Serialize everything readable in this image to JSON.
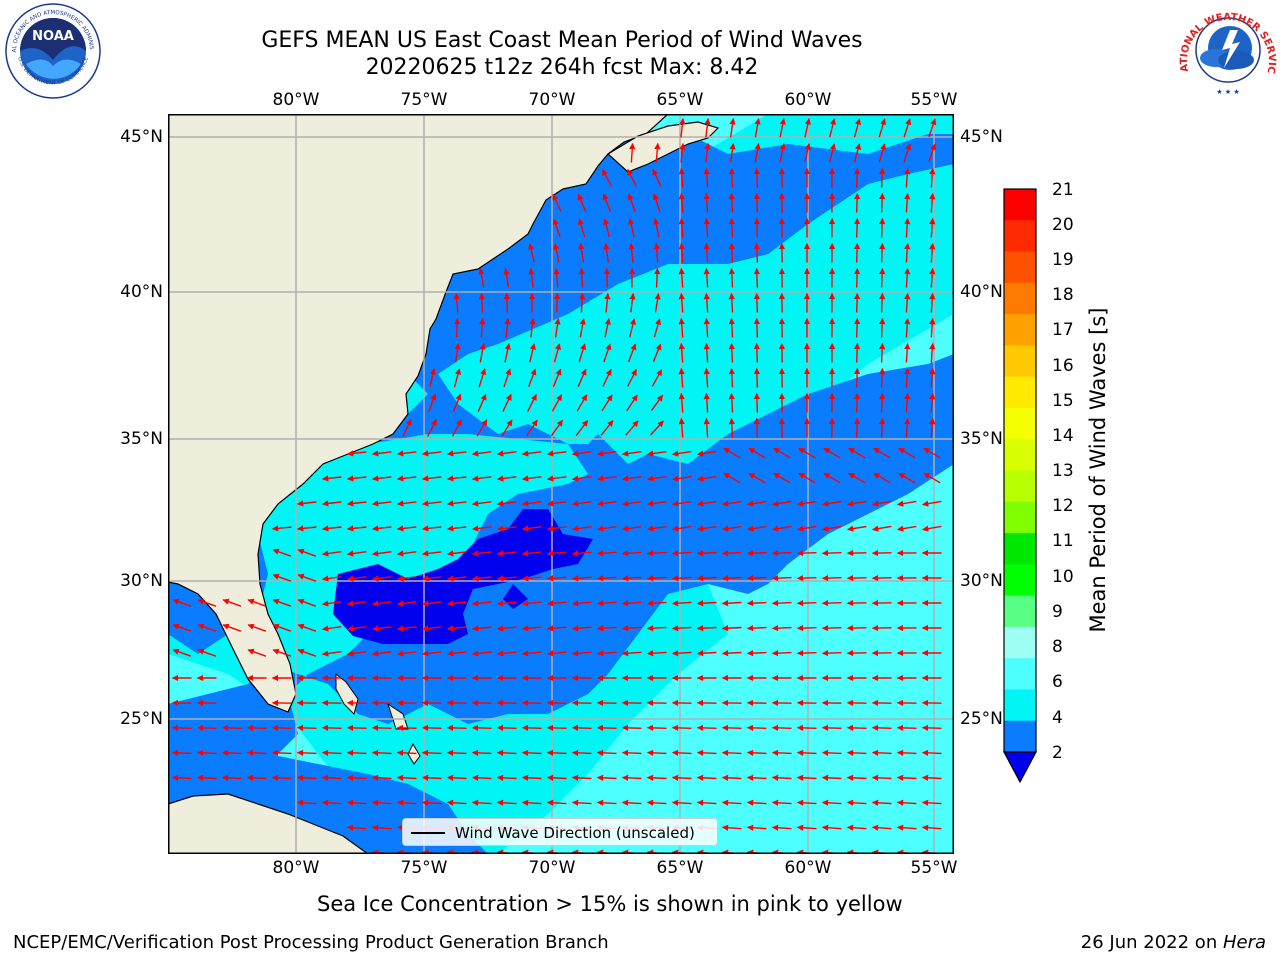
{
  "title": {
    "line1": "GEFS MEAN US East Coast Mean Period of Wind Waves",
    "line2": "20220625 t12z 264h fcst   Max: 8.42"
  },
  "logos": {
    "left": "NOAA",
    "left_ring_top": "NATIONAL OCEANIC AND ATMOSPHERIC ADMINISTRATION",
    "left_ring_bottom": "U.S. DEPARTMENT OF COMMERCE",
    "right_ring": "NATIONAL WEATHER SERVICE"
  },
  "map": {
    "lon_labels": [
      "80°W",
      "75°W",
      "70°W",
      "65°W",
      "60°W",
      "55°W"
    ],
    "lat_labels": [
      "45°N",
      "40°N",
      "35°N",
      "30°N",
      "25°N"
    ],
    "legend_label": "Wind Wave Direction (unscaled)",
    "colors": {
      "land": "#efeedc",
      "water_2_4": "#0a7cff",
      "water_4_6": "#00f5f5",
      "water_6_8": "#4dffff",
      "water_lt2": "#0000ee",
      "arrow": "#ff0000",
      "grid": "#b0b0b0"
    }
  },
  "colorbar": {
    "title": "Mean Period of Wind Waves [s]",
    "ticks": [
      "21",
      "20",
      "19",
      "18",
      "17",
      "16",
      "15",
      "14",
      "13",
      "12",
      "11",
      "10",
      "9",
      "8",
      "6",
      "4",
      "2"
    ],
    "colors": [
      "#ff0000",
      "#ff2a00",
      "#ff5200",
      "#ff7a00",
      "#ffa200",
      "#ffc800",
      "#ffea00",
      "#f4ff00",
      "#d9ff00",
      "#b8ff00",
      "#80ff00",
      "#00e800",
      "#00ff00",
      "#58ff84",
      "#a0fff5",
      "#4dffff",
      "#00f5f5",
      "#0a7cff"
    ],
    "underflow_color": "#0000ee"
  },
  "footer": {
    "note": "Sea Ice Concentration > 15% is shown in pink to yellow",
    "left": "NCEP/EMC/Verification Post Processing Product Generation Branch",
    "right_date": "26 Jun 2022 on ",
    "right_host": "Hera"
  }
}
